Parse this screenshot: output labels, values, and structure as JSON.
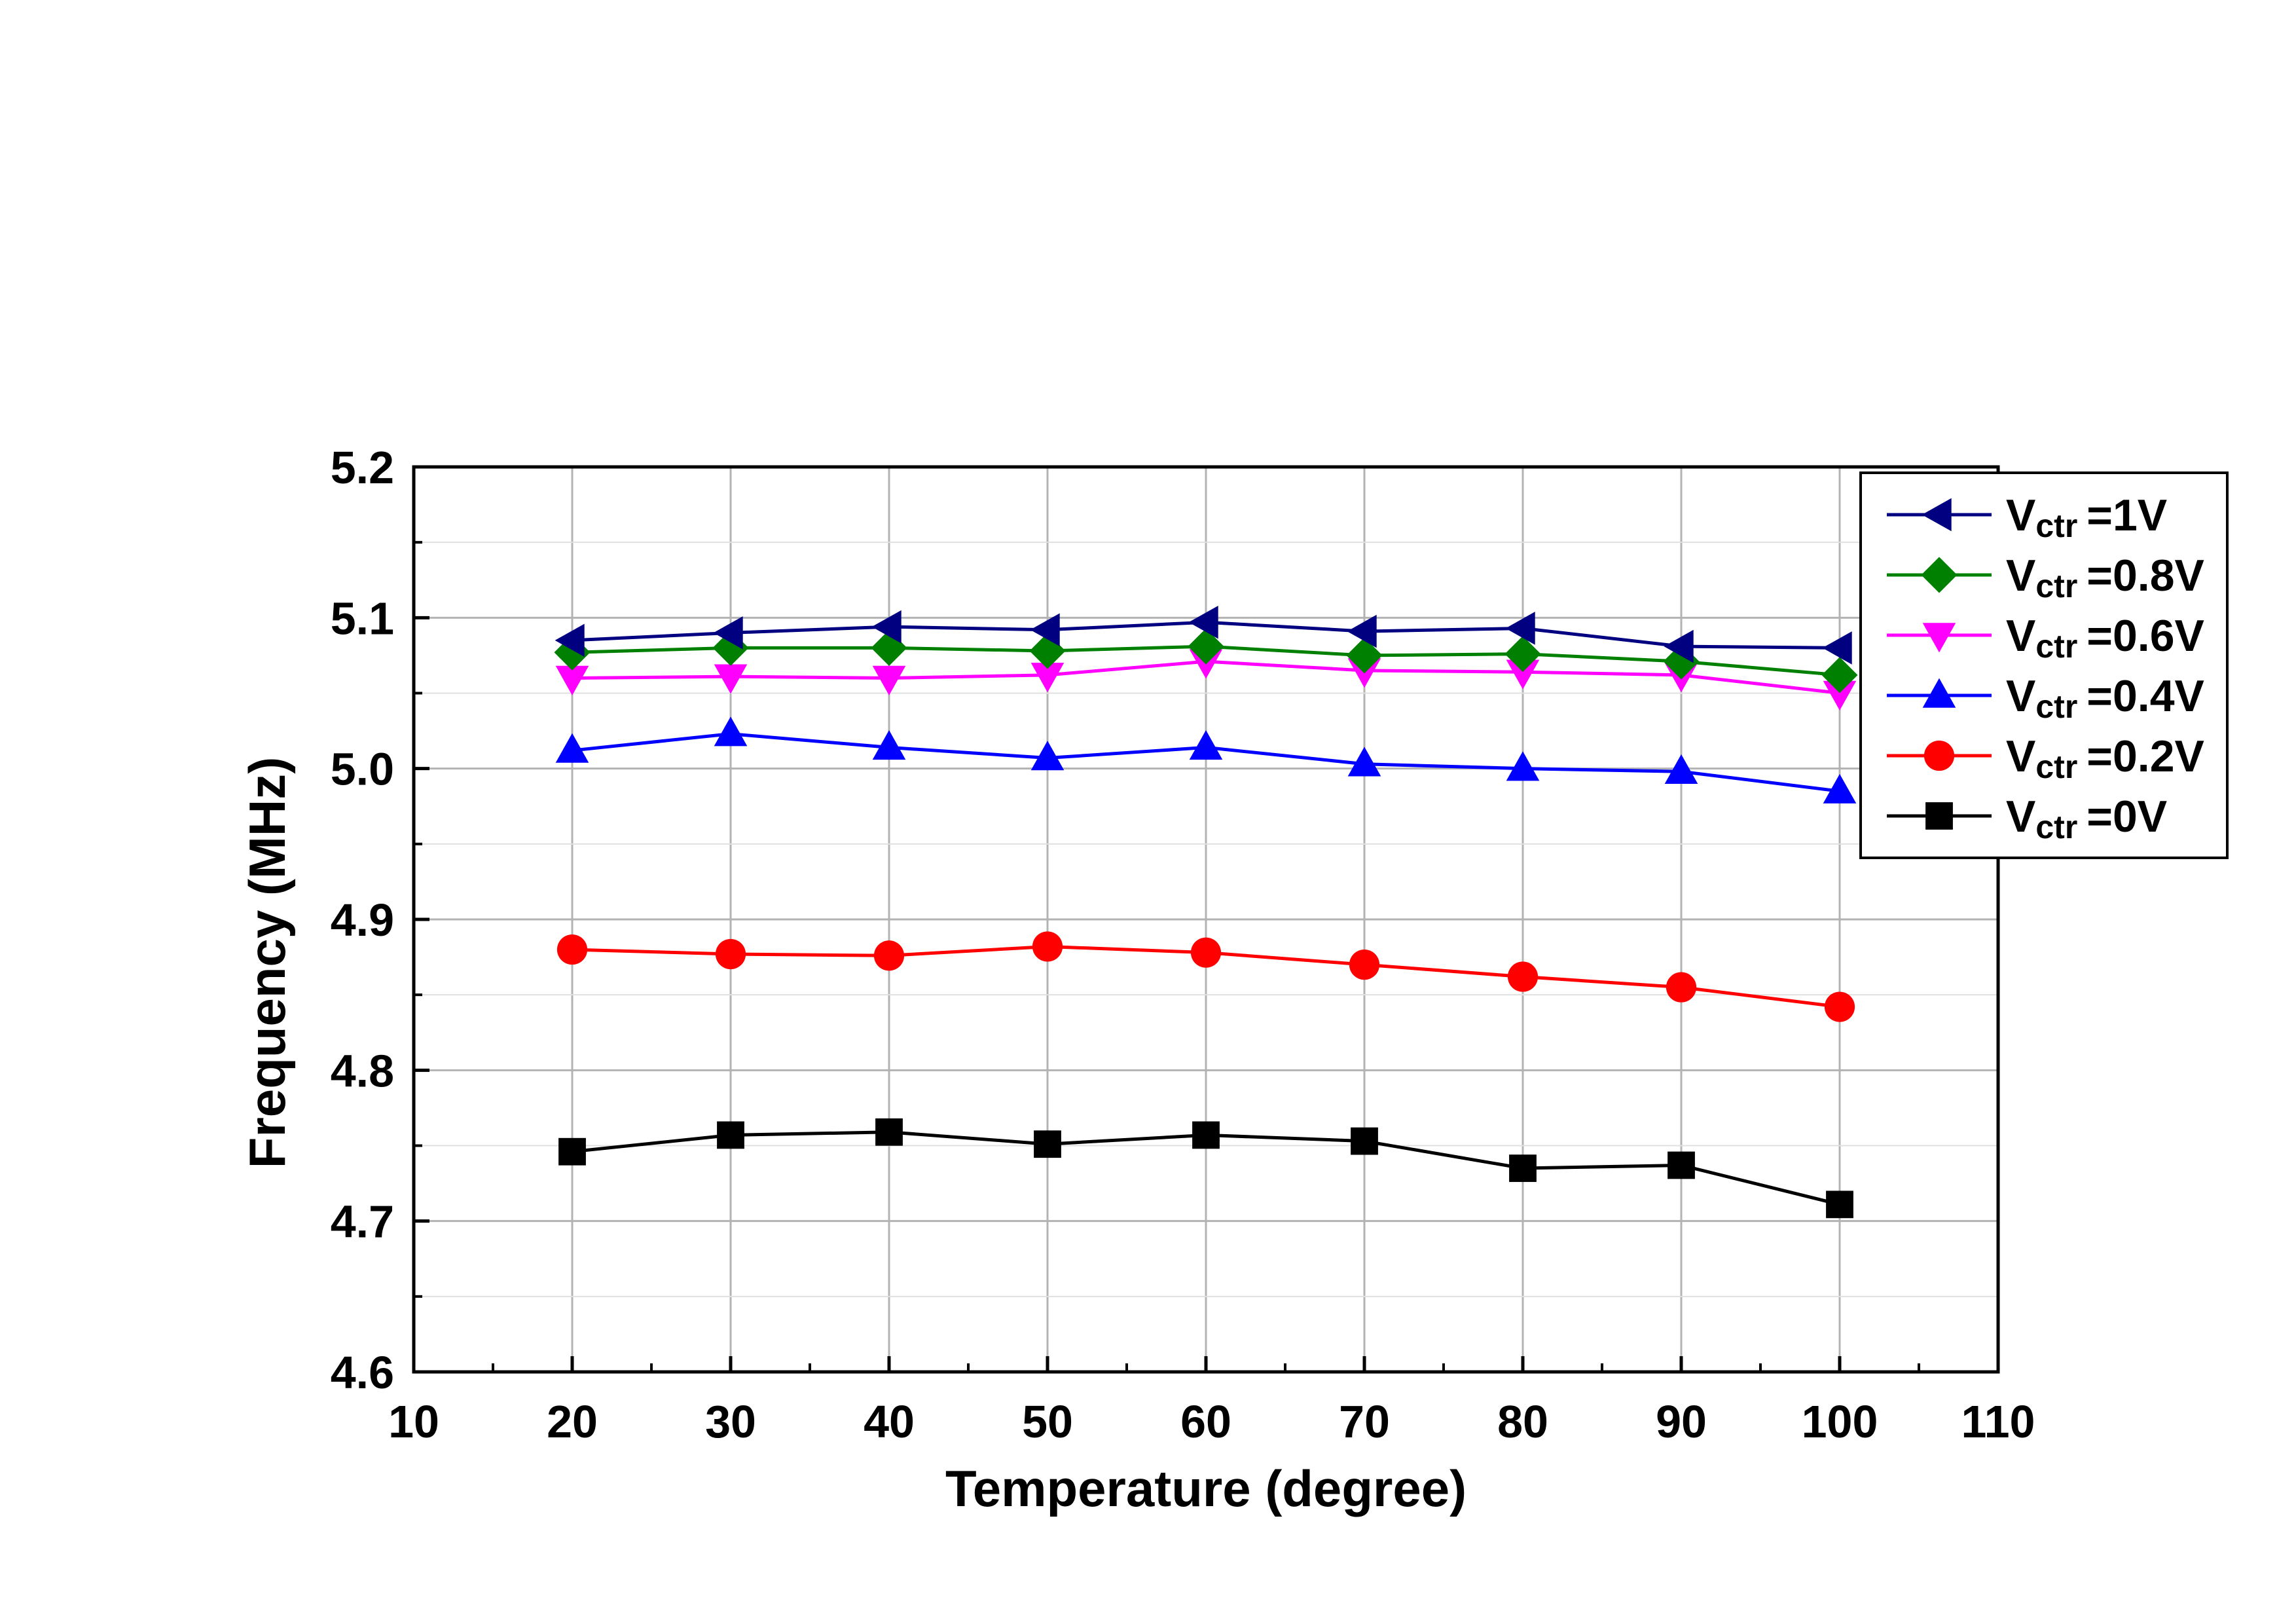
{
  "chart_data": {
    "type": "line",
    "title": "",
    "xlabel": "Temperature (degree)",
    "ylabel": "Frequency (MHz)",
    "xlim": [
      10,
      110
    ],
    "ylim": [
      4.6,
      5.2
    ],
    "x_ticks": [
      "10",
      "20",
      "30",
      "40",
      "50",
      "60",
      "70",
      "80",
      "90",
      "100",
      "110"
    ],
    "y_ticks": [
      "4.6",
      "4.7",
      "4.8",
      "4.9",
      "5.0",
      "5.1",
      "5.2"
    ],
    "grid": true,
    "legend_position": "top-right",
    "x": [
      20,
      30,
      40,
      50,
      60,
      70,
      80,
      90,
      100
    ],
    "series": [
      {
        "name": "=1V",
        "legend_main": "V",
        "legend_sub": "ctr",
        "color": "#000080",
        "marker": "triangle-left",
        "values": [
          5.085,
          5.09,
          5.094,
          5.092,
          5.097,
          5.091,
          5.093,
          5.081,
          5.08
        ]
      },
      {
        "name": "=0.8V",
        "legend_main": "V",
        "legend_sub": "ctr",
        "color": "#008000",
        "marker": "diamond",
        "values": [
          5.077,
          5.08,
          5.08,
          5.078,
          5.081,
          5.075,
          5.076,
          5.071,
          5.062
        ]
      },
      {
        "name": "=0.6V",
        "legend_main": "V",
        "legend_sub": "ctr",
        "color": "#ff00ff",
        "marker": "triangle-down",
        "values": [
          5.06,
          5.061,
          5.06,
          5.062,
          5.071,
          5.065,
          5.064,
          5.062,
          5.05
        ]
      },
      {
        "name": "=0.4V",
        "legend_main": "V",
        "legend_sub": "ctr",
        "color": "#0000ff",
        "marker": "triangle-up",
        "values": [
          5.012,
          5.023,
          5.014,
          5.007,
          5.014,
          5.003,
          5.0,
          4.998,
          4.985
        ]
      },
      {
        "name": "=0.2V",
        "legend_main": "V",
        "legend_sub": "ctr",
        "color": "#ff0000",
        "marker": "circle",
        "values": [
          4.88,
          4.877,
          4.876,
          4.882,
          4.878,
          4.87,
          4.862,
          4.855,
          4.842
        ]
      },
      {
        "name": "=0V",
        "legend_main": "V",
        "legend_sub": "ctr",
        "color": "#000000",
        "marker": "square",
        "values": [
          4.746,
          4.757,
          4.759,
          4.751,
          4.757,
          4.753,
          4.735,
          4.737,
          4.711
        ]
      }
    ]
  }
}
